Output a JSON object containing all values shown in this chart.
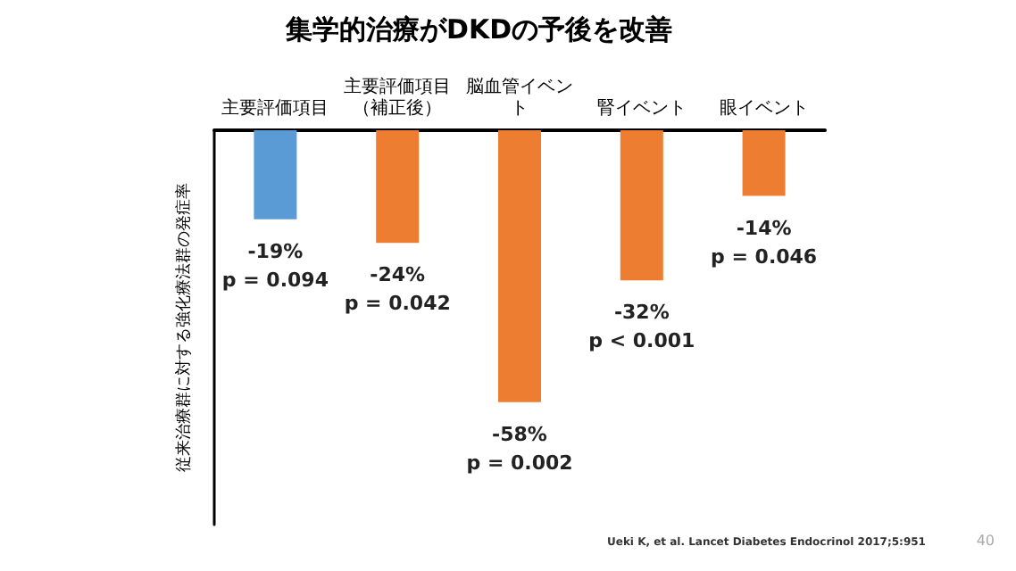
{
  "chart_data": {
    "type": "bar",
    "title": "集学的治療がDKDの予後を改善",
    "ylabel": "従来治療群に対する強化療法群の発症率",
    "categories": [
      "主要評価項目",
      "主要評価項目（補正後）",
      "脳血管イベント",
      "腎イベント",
      "眼イベント"
    ],
    "values": [
      -19,
      -24,
      -58,
      -32,
      -14
    ],
    "colors": [
      "#5b9bd5",
      "#ed7d31",
      "#ed7d31",
      "#ed7d31",
      "#ed7d31"
    ],
    "value_labels": [
      "-19%\np = 0.094",
      "-24%\np = 0.042",
      "-58%\np = 0.002",
      "-32%\np < 0.001",
      "-14%\np = 0.046"
    ],
    "tick_labels": "x",
    "grid": false,
    "annotations": [
      "Ueki K, et al. Lancet Diabetes Endocrinol 2017;5:951",
      "40"
    ]
  }
}
